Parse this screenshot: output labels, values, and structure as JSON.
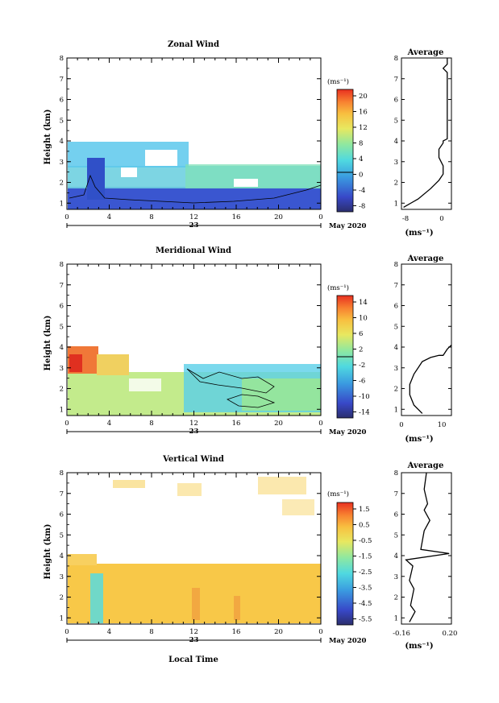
{
  "x_axis": {
    "ticks": [
      "0",
      "4",
      "8",
      "12",
      "16",
      "20",
      "0"
    ],
    "date_label": "23",
    "month_label": "May 2020",
    "xlabel": "Local Time"
  },
  "panels": [
    {
      "key": "zonal",
      "title": "Zonal Wind",
      "ylabel": "Height (km)",
      "ytick_labels": [
        "1",
        "2",
        "3",
        "4",
        "5",
        "6",
        "7",
        "8"
      ],
      "unit_label": "(ms⁻¹)",
      "colorbar_ticks": [
        "20",
        "16",
        "12",
        "8",
        "4",
        "0",
        "-4",
        "-8"
      ],
      "avg_title": "Average",
      "avg_xticks": [
        "-8",
        "0"
      ],
      "avg_xlabel": "(ms⁻¹)"
    },
    {
      "key": "meridional",
      "title": "Meridional Wind",
      "ylabel": "Height (km)",
      "ytick_labels": [
        "1",
        "2",
        "3",
        "4",
        "5",
        "6",
        "7",
        "8"
      ],
      "unit_label": "(ms⁻¹)",
      "colorbar_ticks": [
        "14",
        "10",
        "6",
        "2",
        "-2",
        "-6",
        "-10",
        "-14"
      ],
      "avg_title": "Average",
      "avg_xticks": [
        "0",
        "10"
      ],
      "avg_xlabel": "(ms⁻¹)"
    },
    {
      "key": "vertical",
      "title": "Vertical Wind",
      "ylabel": "Height (km)",
      "ytick_labels": [
        "1",
        "2",
        "3",
        "4",
        "5",
        "6",
        "7",
        "8"
      ],
      "unit_label": "(ms⁻¹)",
      "colorbar_ticks": [
        "1.5",
        "0.5",
        "-0.5",
        "-1.5",
        "-2.5",
        "-3.5",
        "-4.5",
        "-5.5"
      ],
      "avg_title": "Average",
      "avg_xticks": [
        "-0.16",
        "0.20"
      ],
      "avg_xlabel": "(ms⁻¹)"
    }
  ],
  "chart_data": [
    {
      "type": "heatmap",
      "title": "Zonal Wind",
      "xlabel": "Local Time",
      "ylabel": "Height (km)",
      "xlim": [
        0,
        24
      ],
      "ylim": [
        0.7,
        8
      ],
      "zlim": [
        -10,
        22
      ],
      "colorbar_unit": "ms-1",
      "regions": [
        {
          "x": [
            0,
            24
          ],
          "y": [
            0.9,
            1.4
          ],
          "value": -6
        },
        {
          "x": [
            0,
            24
          ],
          "y": [
            1.4,
            2.2
          ],
          "value": 3
        },
        {
          "x": [
            0,
            11
          ],
          "y": [
            2.2,
            3.8
          ],
          "value": 8
        },
        {
          "x": [
            11,
            24
          ],
          "y": [
            2.2,
            3.1
          ],
          "value": 6
        },
        {
          "x": [
            1.5,
            3
          ],
          "y": [
            1.3,
            2.9
          ],
          "value": -4
        }
      ],
      "zero_contour": true
    },
    {
      "type": "line",
      "title": "Average",
      "xlabel": "(ms-1)",
      "xlim": [
        -10,
        2
      ],
      "ylim": [
        0.7,
        8
      ],
      "x": [
        -9.5,
        -6,
        -3,
        -1,
        0,
        0,
        -1,
        -1,
        0,
        0,
        1,
        1,
        0,
        1,
        1
      ],
      "y": [
        0.8,
        1.2,
        1.7,
        2.1,
        2.4,
        2.8,
        3.2,
        3.6,
        3.9,
        4.0,
        4.1,
        7.3,
        7.5,
        7.7,
        8.0
      ]
    },
    {
      "type": "heatmap",
      "title": "Meridional Wind",
      "xlabel": "Local Time",
      "ylabel": "Height (km)",
      "xlim": [
        0,
        24
      ],
      "ylim": [
        0.7,
        8
      ],
      "zlim": [
        -16,
        16
      ],
      "colorbar_unit": "ms-1",
      "regions": [
        {
          "x": [
            0,
            24
          ],
          "y": [
            0.9,
            2.6
          ],
          "value": 5
        },
        {
          "x": [
            0,
            4
          ],
          "y": [
            2.6,
            3.8
          ],
          "value": 12
        },
        {
          "x": [
            4,
            10
          ],
          "y": [
            2.6,
            3.2
          ],
          "value": 6
        },
        {
          "x": [
            11,
            24
          ],
          "y": [
            1.2,
            2.3
          ],
          "value": -1
        },
        {
          "x": [
            11,
            24
          ],
          "y": [
            2.3,
            3.2
          ],
          "value": 3
        }
      ],
      "zero_contour": true
    },
    {
      "type": "line",
      "title": "Average",
      "xlabel": "(ms-1)",
      "xlim": [
        0,
        12
      ],
      "ylim": [
        0.7,
        8
      ],
      "x": [
        5,
        3,
        2,
        2,
        3,
        4,
        5,
        7,
        9,
        10,
        11,
        12
      ],
      "y": [
        0.8,
        1.2,
        1.7,
        2.2,
        2.7,
        3.0,
        3.3,
        3.5,
        3.6,
        3.6,
        3.9,
        4.1
      ]
    },
    {
      "type": "heatmap",
      "title": "Vertical Wind",
      "xlabel": "Local Time",
      "ylabel": "Height (km)",
      "xlim": [
        0,
        24
      ],
      "ylim": [
        0.7,
        8
      ],
      "zlim": [
        -6,
        2
      ],
      "colorbar_unit": "ms-1",
      "regions": [
        {
          "x": [
            0,
            24
          ],
          "y": [
            0.8,
            3.2
          ],
          "value": 0.3
        },
        {
          "x": [
            0,
            5
          ],
          "y": [
            3.2,
            4.0
          ],
          "value": 0.2
        },
        {
          "x": [
            2,
            3
          ],
          "y": [
            0.8,
            2.5
          ],
          "value": -1.5
        }
      ],
      "zero_contour": false
    },
    {
      "type": "line",
      "title": "Average",
      "xlabel": "(ms-1)",
      "xlim": [
        -0.2,
        0.24
      ],
      "ylim": [
        0.7,
        8
      ],
      "x": [
        -0.13,
        -0.08,
        -0.12,
        -0.09,
        -0.13,
        -0.1,
        -0.16,
        0.22,
        -0.03,
        0.0,
        0.05,
        0.0,
        0.03,
        0.0,
        0.02
      ],
      "y": [
        0.8,
        1.3,
        1.6,
        2.4,
        2.8,
        3.5,
        3.8,
        4.1,
        4.3,
        5.2,
        5.7,
        6.2,
        6.5,
        7.2,
        8.0
      ]
    }
  ]
}
